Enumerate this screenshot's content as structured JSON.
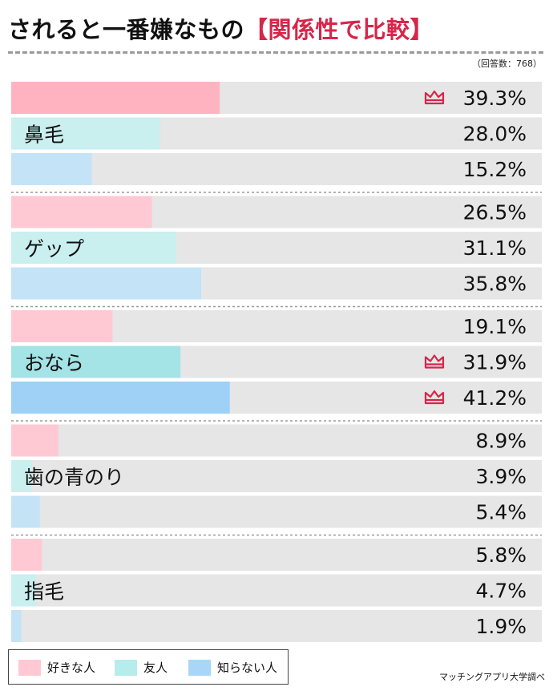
{
  "header": {
    "title_main": "されると一番嫌なもの",
    "title_accent": "【関係性で比較】",
    "sample": "（回答数：768）"
  },
  "chart_data": {
    "type": "bar",
    "orientation": "horizontal",
    "unit": "%",
    "xlim": [
      0,
      100
    ],
    "groups": [
      {
        "label": "鼻毛",
        "values": [
          39.3,
          28.0,
          15.2
        ],
        "labels": [
          "39.3%",
          "28.0%",
          "15.2%"
        ],
        "top": [
          true,
          false,
          false
        ]
      },
      {
        "label": "ゲップ",
        "values": [
          26.5,
          31.1,
          35.8
        ],
        "labels": [
          "26.5%",
          "31.1%",
          "35.8%"
        ],
        "top": [
          false,
          false,
          false
        ]
      },
      {
        "label": "おなら",
        "values": [
          19.1,
          31.9,
          41.2
        ],
        "labels": [
          "19.1%",
          "31.9%",
          "41.2%"
        ],
        "top": [
          false,
          true,
          true
        ]
      },
      {
        "label": "歯の青のり",
        "values": [
          8.9,
          3.9,
          5.4
        ],
        "labels": [
          "8.9%",
          "3.9%",
          "5.4%"
        ],
        "top": [
          false,
          false,
          false
        ]
      },
      {
        "label": "指毛",
        "values": [
          5.8,
          4.7,
          1.9
        ],
        "labels": [
          "5.8%",
          "4.7%",
          "1.9%"
        ],
        "top": [
          false,
          false,
          false
        ]
      }
    ],
    "series": [
      {
        "name": "好きな人",
        "color": "#ffc9d3",
        "highlight_color": "#ffb3c0"
      },
      {
        "name": "友人",
        "color": "#c9efef",
        "highlight_color": "#a4e3e6"
      },
      {
        "name": "知らない人",
        "color": "#c4e3f7",
        "highlight_color": "#9fd0f6"
      }
    ],
    "top_marker": "crown-icon",
    "track_color": "#e6e6e6",
    "marker_color": "#d8254a"
  },
  "legend": {
    "items": [
      {
        "label": "好きな人",
        "color": "#ffc9d3"
      },
      {
        "label": "友人",
        "color": "#b7ecec"
      },
      {
        "label": "知らない人",
        "color": "#a9d6f7"
      }
    ]
  },
  "footer": {
    "source": "マッチングアプリ大学調べ"
  }
}
